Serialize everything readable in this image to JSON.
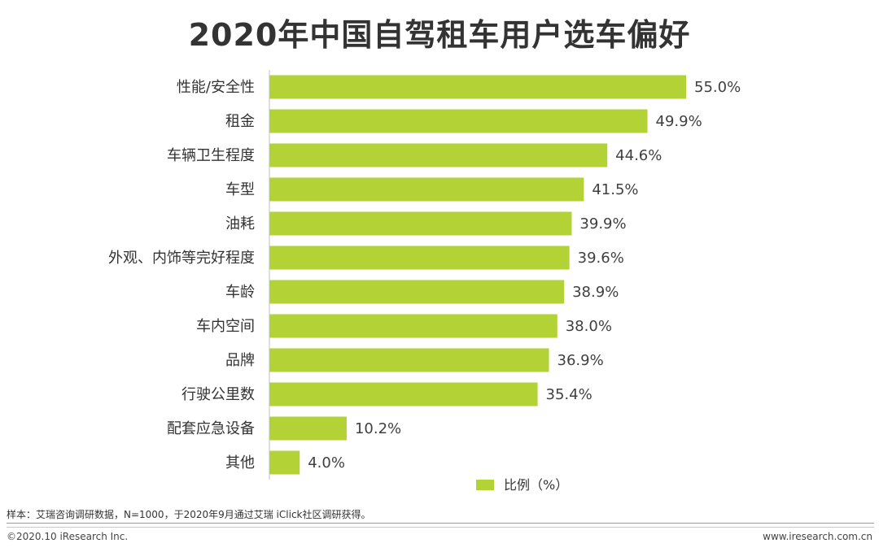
{
  "chart_data": {
    "type": "bar",
    "orientation": "horizontal",
    "title": "2020年中国自驾租车用户选车偏好",
    "categories": [
      "性能/安全性",
      "租金",
      "车辆卫生程度",
      "车型",
      "油耗",
      "外观、内饰等完好程度",
      "车龄",
      "车内空间",
      "品牌",
      "行驶公里数",
      "配套应急设备",
      "其他"
    ],
    "series": [
      {
        "name": "比例（%）",
        "values": [
          55.0,
          49.9,
          44.6,
          41.5,
          39.9,
          39.6,
          38.9,
          38.0,
          36.9,
          35.4,
          10.2,
          4.0
        ],
        "value_labels": [
          "55.0%",
          "49.9%",
          "44.6%",
          "41.5%",
          "39.9%",
          "39.6%",
          "38.9%",
          "38.0%",
          "36.9%",
          "35.4%",
          "10.2%",
          "4.0%"
        ],
        "color": "#b2d235"
      }
    ],
    "xlim": [
      0,
      55
    ],
    "grid": false,
    "legend_position": "bottom"
  },
  "footer": {
    "note": "样本：艾瑞咨询调研数据，N=1000，于2020年9月通过艾瑞 iClick社区调研获得。",
    "copyright": "©2020.10 iResearch Inc.",
    "website": "www.iresearch.com.cn"
  },
  "colors": {
    "bar": "#b2d235",
    "axis": "#bfbfbf",
    "text": "#333333"
  }
}
